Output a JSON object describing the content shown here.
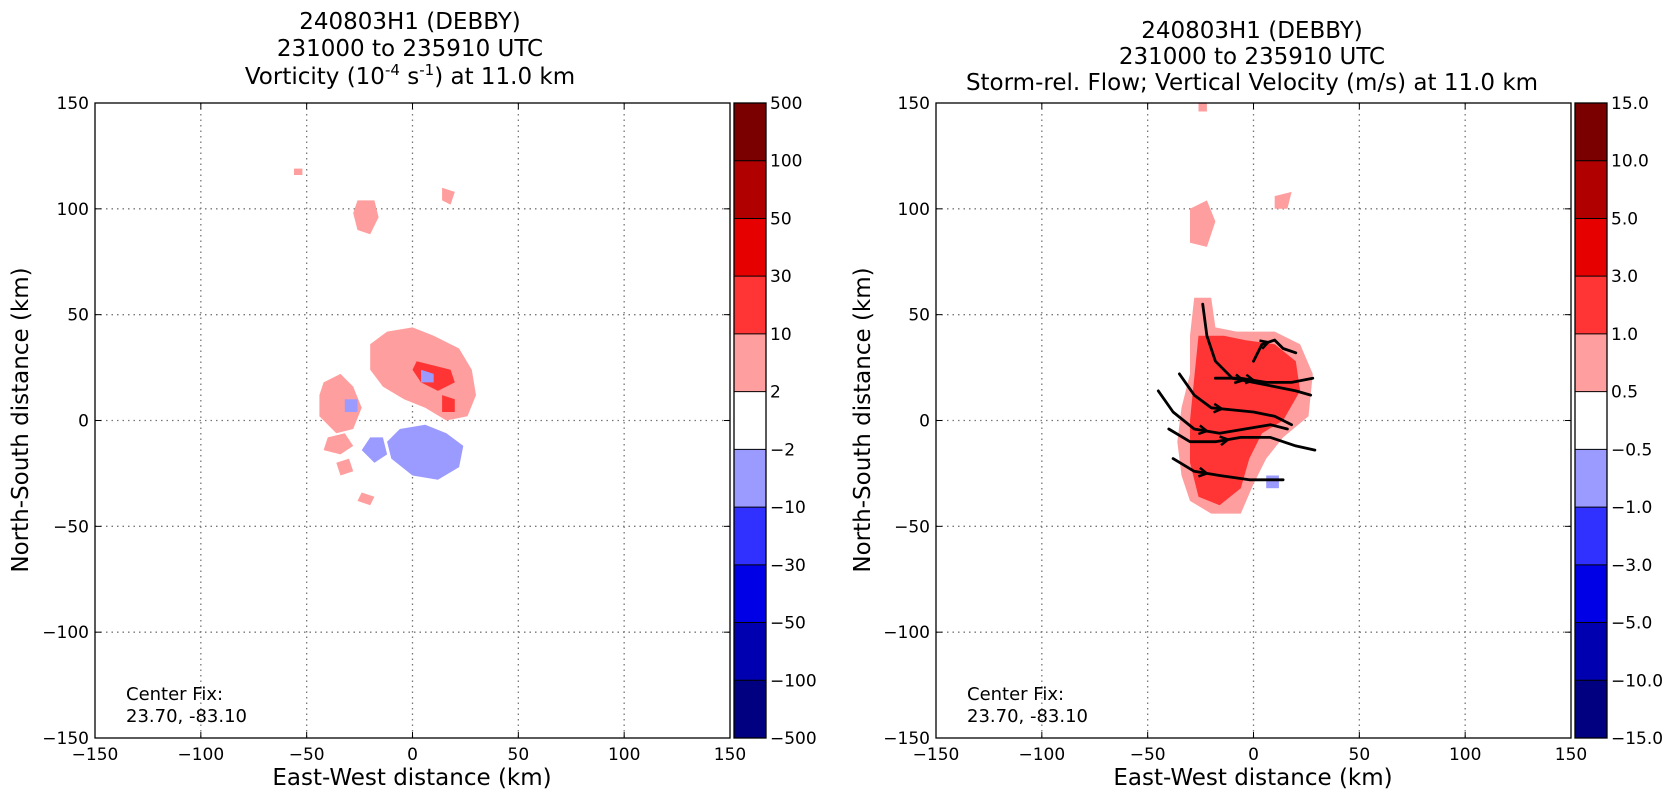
{
  "chart_data": [
    {
      "type": "heatmap",
      "title_lines": [
        "240803H1 (DEBBY)",
        "231000 to 235910 UTC"
      ],
      "title_line3": {
        "pre": "Vorticity (10",
        "sup1": "-4",
        "mid": " s",
        "sup2": "-1",
        "post": ") at 11.0 km"
      },
      "xlabel": "East-West distance (km)",
      "ylabel": "North-South distance (km)",
      "xlim": [
        -150,
        150
      ],
      "ylim": [
        -150,
        150
      ],
      "xticks": [
        "−150",
        "−100",
        "−50",
        "0",
        "50",
        "100",
        "150"
      ],
      "yticks": [
        "−150",
        "−100",
        "−50",
        "0",
        "50",
        "100",
        "150"
      ],
      "grid": true,
      "annotation_lines": [
        "Center Fix:",
        "23.70, -83.10"
      ],
      "colorbar": {
        "labels": [
          "500",
          "100",
          "50",
          "30",
          "10",
          "2",
          "−2",
          "−10",
          "−30",
          "−50",
          "−100",
          "−500"
        ],
        "colors": [
          "#7a0000",
          "#b00000",
          "#e60000",
          "#ff3535",
          "#ff9e9e",
          "#ffffff",
          "#9a9aff",
          "#3030ff",
          "#0000e6",
          "#0000b0",
          "#000080"
        ]
      },
      "regions": [
        {
          "level": 2,
          "color": "#ff9e9e",
          "points": [
            [
              -42,
              18
            ],
            [
              -34,
              22
            ],
            [
              -28,
              16
            ],
            [
              -24,
              6
            ],
            [
              -28,
              -4
            ],
            [
              -36,
              -6
            ],
            [
              -44,
              2
            ],
            [
              -44,
              12
            ]
          ]
        },
        {
          "level": 2,
          "color": "#ff9e9e",
          "points": [
            [
              -20,
              36
            ],
            [
              -12,
              42
            ],
            [
              0,
              44
            ],
            [
              10,
              40
            ],
            [
              22,
              34
            ],
            [
              28,
              24
            ],
            [
              30,
              12
            ],
            [
              26,
              2
            ],
            [
              16,
              0
            ],
            [
              6,
              6
            ],
            [
              -4,
              10
            ],
            [
              -14,
              16
            ],
            [
              -20,
              24
            ]
          ]
        },
        {
          "level": 2,
          "color": "#ff9e9e",
          "points": [
            [
              -40,
              -8
            ],
            [
              -32,
              -6
            ],
            [
              -28,
              -12
            ],
            [
              -34,
              -16
            ],
            [
              -42,
              -14
            ]
          ]
        },
        {
          "level": 2,
          "color": "#ff9e9e",
          "points": [
            [
              -36,
              -20
            ],
            [
              -30,
              -18
            ],
            [
              -28,
              -24
            ],
            [
              -34,
              -26
            ]
          ]
        },
        {
          "level": 2,
          "color": "#ff9e9e",
          "points": [
            [
              -26,
              104
            ],
            [
              -18,
              104
            ],
            [
              -16,
              96
            ],
            [
              -20,
              88
            ],
            [
              -26,
              90
            ],
            [
              -28,
              98
            ]
          ]
        },
        {
          "level": 2,
          "color": "#ff9e9e",
          "points": [
            [
              14,
              110
            ],
            [
              20,
              108
            ],
            [
              18,
              102
            ],
            [
              14,
              104
            ]
          ]
        },
        {
          "level": 2,
          "color": "#ff9e9e",
          "points": [
            [
              -56,
              119
            ],
            [
              -52,
              119
            ],
            [
              -52,
              116
            ],
            [
              -56,
              116
            ]
          ]
        },
        {
          "level": 2,
          "color": "#ff9e9e",
          "points": [
            [
              -24,
              -34
            ],
            [
              -18,
              -36
            ],
            [
              -20,
              -40
            ],
            [
              -26,
              -38
            ]
          ]
        },
        {
          "level": 10,
          "color": "#ff3535",
          "points": [
            [
              2,
              28
            ],
            [
              10,
              26
            ],
            [
              18,
              24
            ],
            [
              20,
              18
            ],
            [
              12,
              14
            ],
            [
              4,
              18
            ],
            [
              0,
              24
            ]
          ]
        },
        {
          "level": 10,
          "color": "#ff3535",
          "points": [
            [
              14,
              12
            ],
            [
              20,
              10
            ],
            [
              20,
              4
            ],
            [
              14,
              4
            ]
          ]
        },
        {
          "level": -2,
          "color": "#9a9aff",
          "points": [
            [
              -6,
              -4
            ],
            [
              6,
              -2
            ],
            [
              16,
              -6
            ],
            [
              24,
              -12
            ],
            [
              22,
              -22
            ],
            [
              12,
              -28
            ],
            [
              0,
              -26
            ],
            [
              -10,
              -18
            ],
            [
              -12,
              -10
            ]
          ]
        },
        {
          "level": -2,
          "color": "#9a9aff",
          "points": [
            [
              -20,
              -8
            ],
            [
              -14,
              -8
            ],
            [
              -12,
              -16
            ],
            [
              -18,
              -20
            ],
            [
              -24,
              -14
            ]
          ]
        },
        {
          "level": -2,
          "color": "#9a9aff",
          "points": [
            [
              -32,
              10
            ],
            [
              -26,
              10
            ],
            [
              -26,
              4
            ],
            [
              -32,
              4
            ]
          ]
        },
        {
          "level": -2,
          "color": "#9a9aff",
          "points": [
            [
              4,
              24
            ],
            [
              10,
              22
            ],
            [
              10,
              18
            ],
            [
              4,
              18
            ]
          ]
        }
      ],
      "streamlines": []
    },
    {
      "type": "heatmap",
      "title_lines": [
        "240803H1 (DEBBY)",
        "231000 to 235910 UTC",
        "Storm-rel. Flow; Vertical Velocity (m/s) at 11.0 km"
      ],
      "xlabel": "East-West distance (km)",
      "ylabel": "North-South distance (km)",
      "xlim": [
        -150,
        150
      ],
      "ylim": [
        -150,
        150
      ],
      "xticks": [
        "−150",
        "−100",
        "−50",
        "0",
        "50",
        "100",
        "150"
      ],
      "yticks": [
        "−150",
        "−100",
        "−50",
        "0",
        "50",
        "100",
        "150"
      ],
      "grid": true,
      "annotation_lines": [
        "Center Fix:",
        "23.70, -83.10"
      ],
      "colorbar": {
        "labels": [
          "15.0",
          "10.0",
          "5.0",
          "3.0",
          "1.0",
          "0.5",
          "−0.5",
          "−1.0",
          "−3.0",
          "−5.0",
          "−10.0",
          "−15.0"
        ],
        "colors": [
          "#7a0000",
          "#b00000",
          "#e60000",
          "#ff3535",
          "#ff9e9e",
          "#ffffff",
          "#9a9aff",
          "#3030ff",
          "#0000e6",
          "#0000b0",
          "#000080"
        ]
      },
      "regions": [
        {
          "level": 0.5,
          "color": "#ff9e9e",
          "points": [
            [
              -28,
              58
            ],
            [
              -20,
              58
            ],
            [
              -18,
              44
            ],
            [
              -8,
              42
            ],
            [
              10,
              42
            ],
            [
              22,
              36
            ],
            [
              28,
              22
            ],
            [
              26,
              2
            ],
            [
              14,
              -8
            ],
            [
              6,
              -18
            ],
            [
              0,
              -30
            ],
            [
              -6,
              -44
            ],
            [
              -20,
              -44
            ],
            [
              -30,
              -38
            ],
            [
              -34,
              -26
            ],
            [
              -36,
              -10
            ],
            [
              -34,
              6
            ],
            [
              -30,
              22
            ],
            [
              -30,
              40
            ]
          ]
        },
        {
          "level": 0.5,
          "color": "#ff9e9e",
          "points": [
            [
              -30,
              100
            ],
            [
              -22,
              104
            ],
            [
              -18,
              94
            ],
            [
              -22,
              82
            ],
            [
              -30,
              84
            ]
          ]
        },
        {
          "level": 0.5,
          "color": "#ff9e9e",
          "points": [
            [
              10,
              106
            ],
            [
              18,
              108
            ],
            [
              16,
              100
            ],
            [
              10,
              100
            ]
          ]
        },
        {
          "level": 0.5,
          "color": "#ff9e9e",
          "points": [
            [
              -26,
              150
            ],
            [
              -22,
              150
            ],
            [
              -22,
              146
            ],
            [
              -26,
              146
            ]
          ]
        },
        {
          "level": 1.0,
          "color": "#ff3535",
          "points": [
            [
              -26,
              40
            ],
            [
              -14,
              40
            ],
            [
              -4,
              38
            ],
            [
              10,
              36
            ],
            [
              20,
              28
            ],
            [
              22,
              14
            ],
            [
              14,
              0
            ],
            [
              4,
              -6
            ],
            [
              -2,
              -18
            ],
            [
              -6,
              -32
            ],
            [
              -16,
              -40
            ],
            [
              -26,
              -36
            ],
            [
              -30,
              -20
            ],
            [
              -30,
              0
            ],
            [
              -28,
              20
            ]
          ]
        },
        {
          "level": -0.5,
          "color": "#9a9aff",
          "points": [
            [
              6,
              -26
            ],
            [
              12,
              -26
            ],
            [
              12,
              -32
            ],
            [
              6,
              -32
            ]
          ]
        }
      ],
      "streamlines": [
        [
          [
            -24,
            55
          ],
          [
            -22,
            40
          ],
          [
            -18,
            28
          ],
          [
            -10,
            20
          ],
          [
            0,
            18
          ],
          [
            10,
            16
          ],
          [
            20,
            14
          ],
          [
            27,
            12
          ]
        ],
        [
          [
            -35,
            22
          ],
          [
            -28,
            12
          ],
          [
            -20,
            6
          ],
          [
            -10,
            5
          ],
          [
            0,
            4
          ],
          [
            10,
            2
          ],
          [
            18,
            -2
          ]
        ],
        [
          [
            -45,
            14
          ],
          [
            -38,
            4
          ],
          [
            -28,
            -4
          ],
          [
            -16,
            -6
          ],
          [
            -4,
            -4
          ],
          [
            8,
            -2
          ],
          [
            16,
            -4
          ]
        ],
        [
          [
            -40,
            -4
          ],
          [
            -30,
            -10
          ],
          [
            -18,
            -10
          ],
          [
            -6,
            -8
          ],
          [
            8,
            -8
          ],
          [
            20,
            -12
          ],
          [
            29,
            -14
          ]
        ],
        [
          [
            -38,
            -18
          ],
          [
            -28,
            -24
          ],
          [
            -16,
            -26
          ],
          [
            -2,
            -28
          ],
          [
            14,
            -28
          ]
        ],
        [
          [
            0,
            28
          ],
          [
            4,
            36
          ],
          [
            10,
            38
          ],
          [
            14,
            34
          ],
          [
            20,
            32
          ]
        ],
        [
          [
            -18,
            20
          ],
          [
            -6,
            20
          ],
          [
            6,
            18
          ],
          [
            18,
            18
          ],
          [
            28,
            20
          ]
        ]
      ]
    }
  ]
}
